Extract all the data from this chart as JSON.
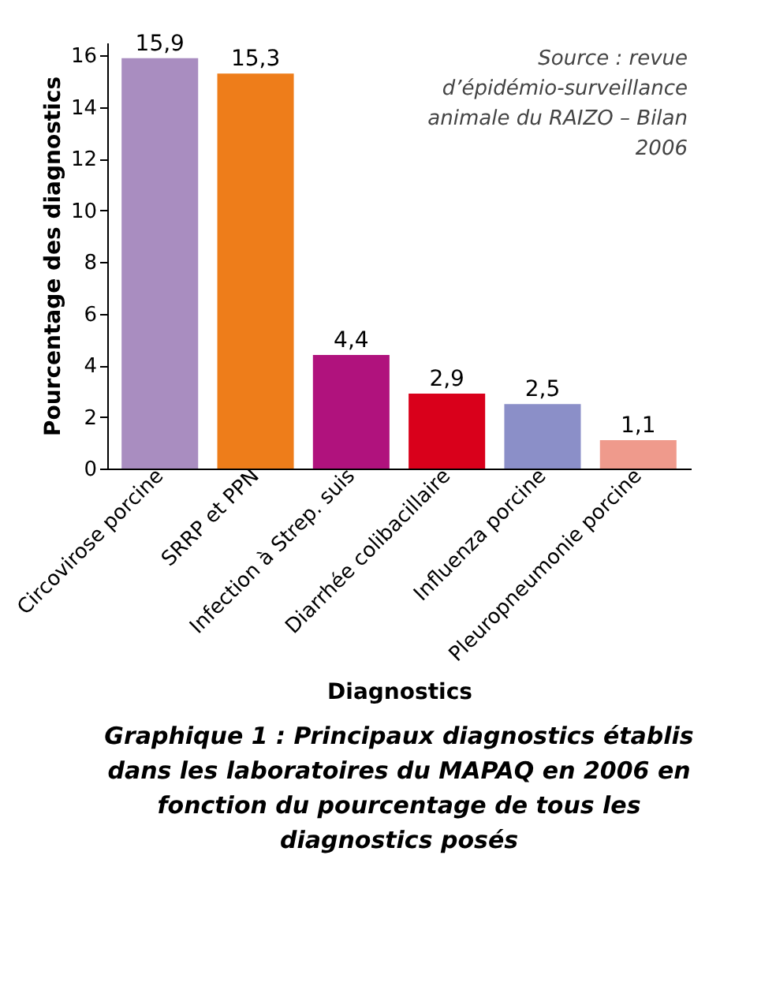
{
  "chart_data": {
    "type": "bar",
    "title": "Graphique 1 : Principaux diagnostics établis dans les laboratoires du MAPAQ en 2006 en fonction du pourcentage de tous les diagnostics posés",
    "xlabel": "Diagnostics",
    "ylabel": "Pourcentage des diagnostics",
    "categories": [
      "Circovirose porcine",
      "SRRP et PPN",
      "Infection à Strep. suis",
      "Diarrhée colibacillaire",
      "Influenza porcine",
      "Pleuropneumonie porcine"
    ],
    "values": [
      15.9,
      15.3,
      4.4,
      2.9,
      2.5,
      1.1
    ],
    "colors": [
      "#a98dc0",
      "#ee7d1a",
      "#b0127d",
      "#d9001b",
      "#8b8fc8",
      "#ef9a8c"
    ],
    "value_labels": [
      "15,9",
      "15,3",
      "4,4",
      "2,9",
      "2,5",
      "1,1"
    ],
    "ylim": [
      0,
      16.5
    ],
    "yticks": [
      0,
      2,
      4,
      6,
      8,
      10,
      12,
      14,
      16
    ],
    "grid": false,
    "annotations": [
      "Source : revue d’épidémio-surveillance animale du RAIZO – Bilan 2006"
    ]
  }
}
